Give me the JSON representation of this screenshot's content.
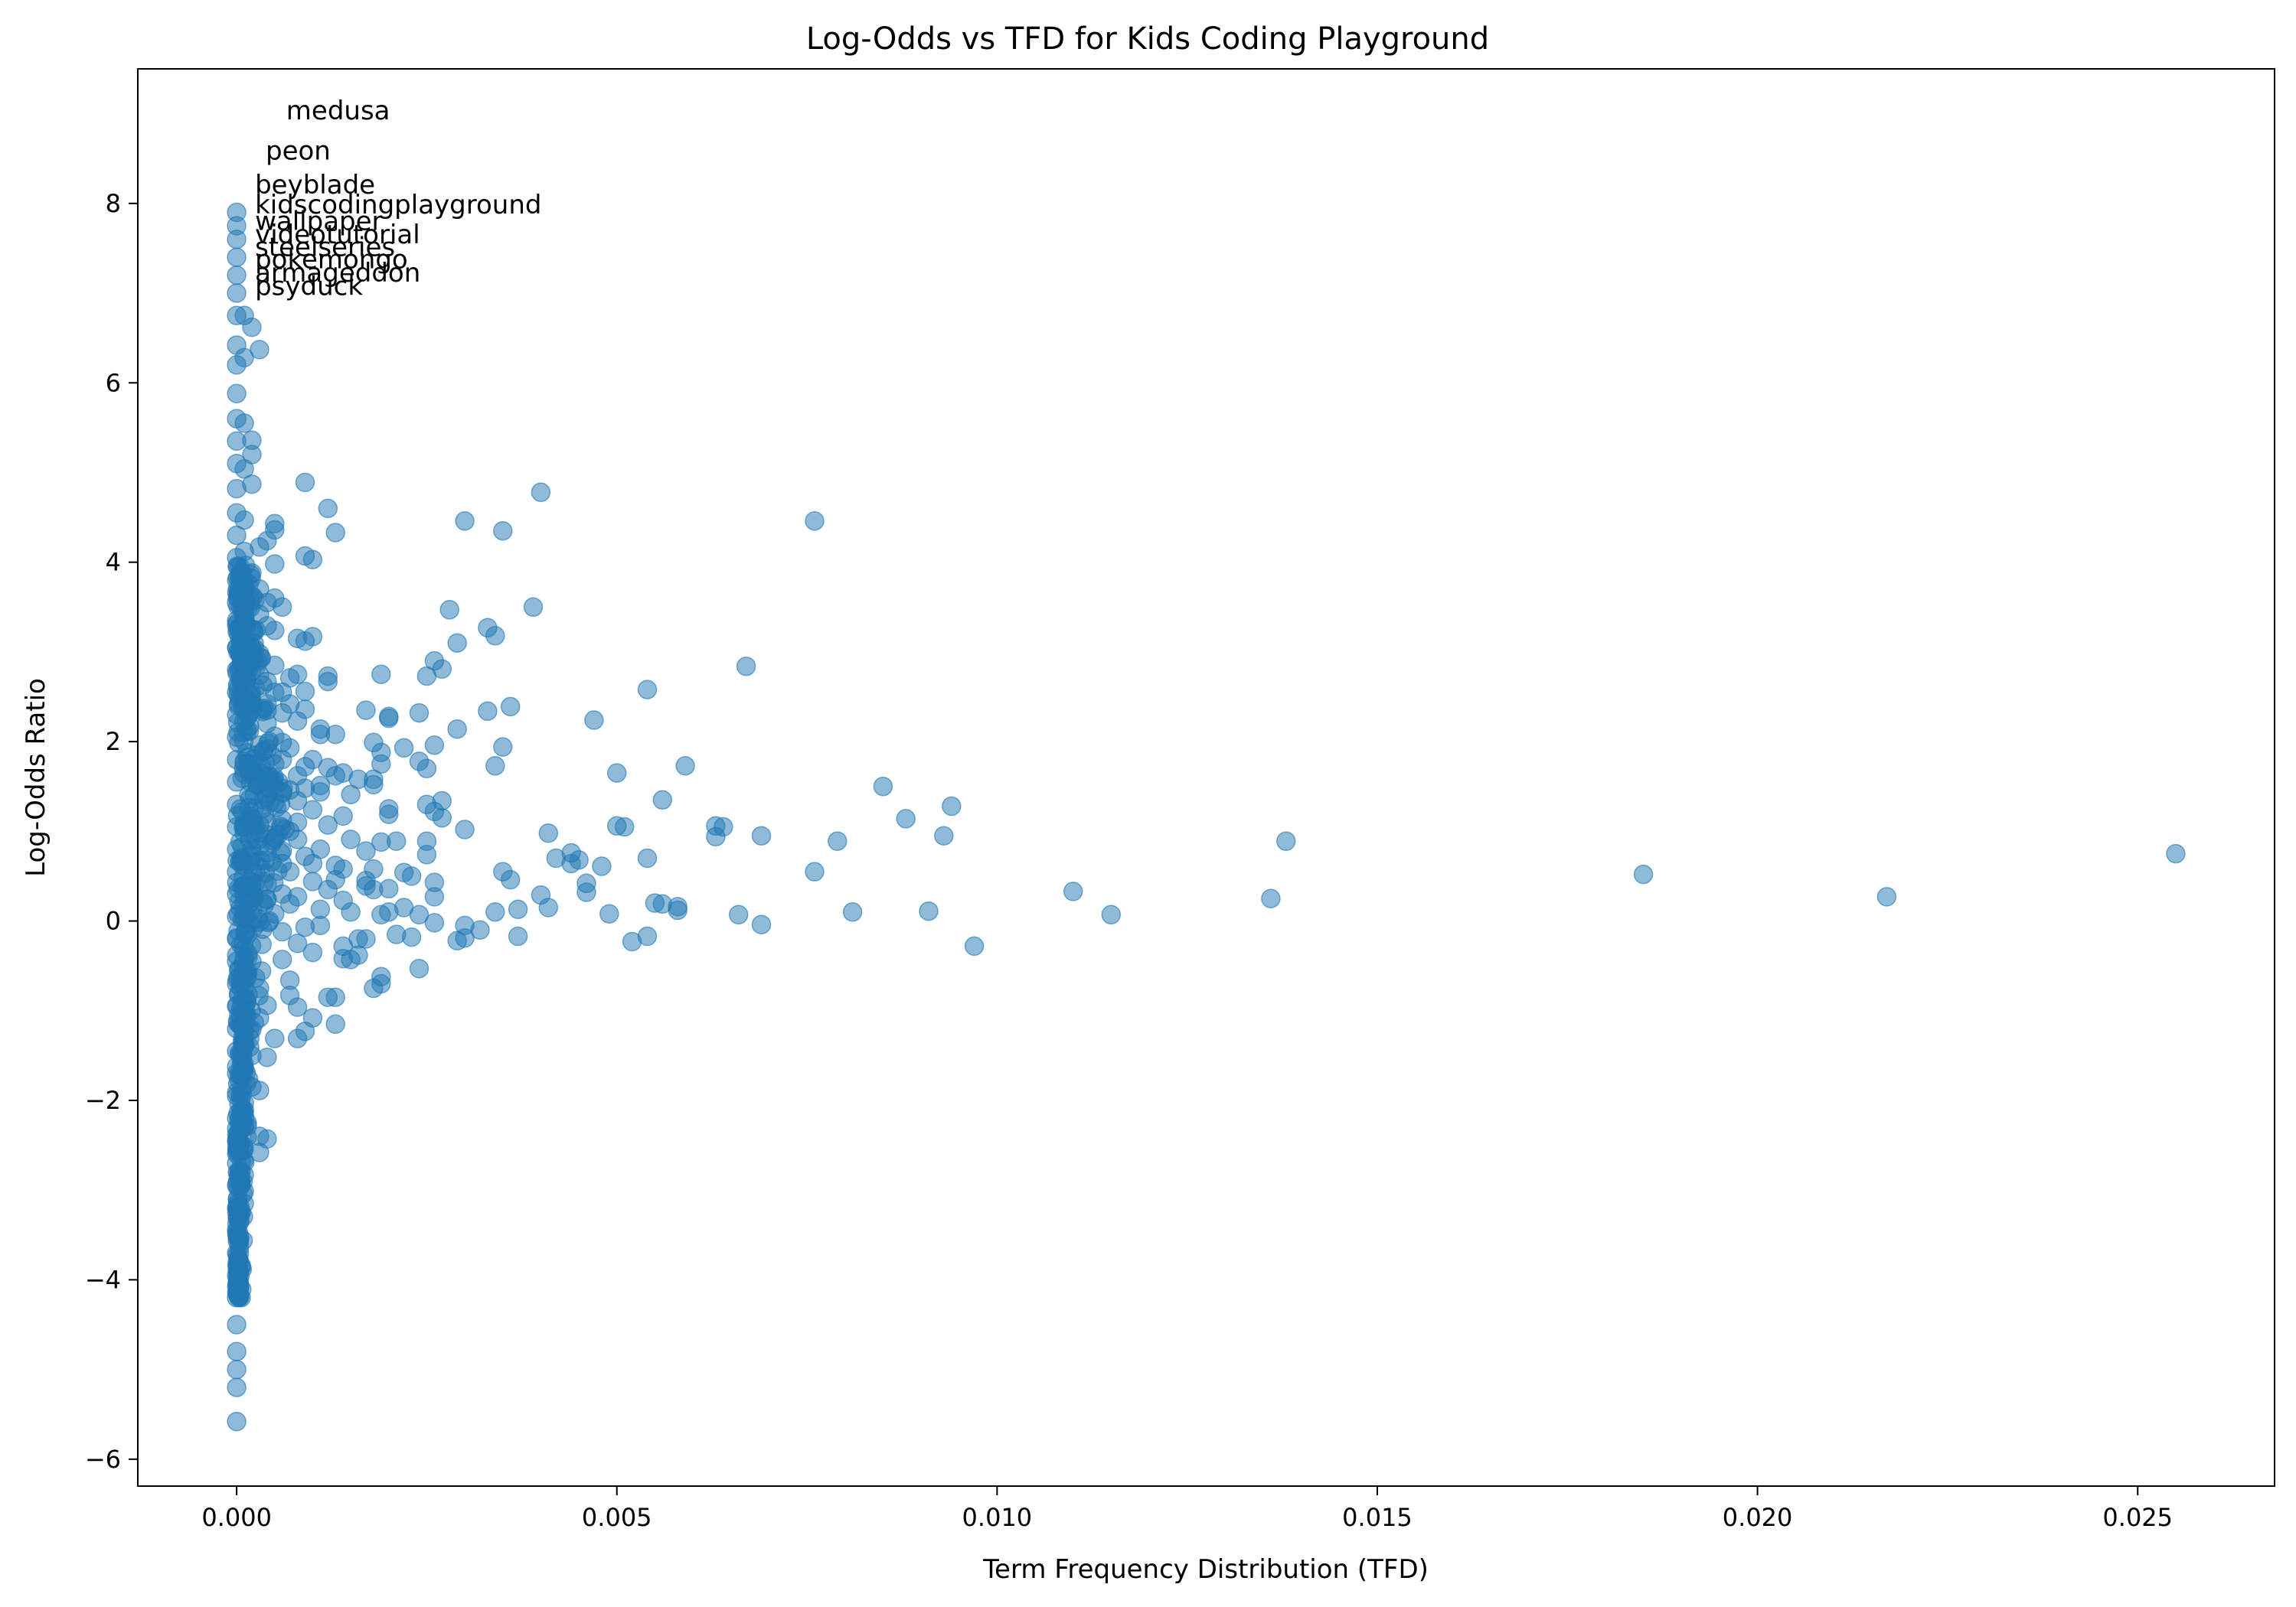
{
  "chart_data": {
    "type": "scatter",
    "title": "Log-Odds vs TFD for Kids Coding Playground",
    "xlabel": "Term Frequency Distribution (TFD)",
    "ylabel": "Log-Odds Ratio",
    "xlim": [
      -0.0013,
      0.0268
    ],
    "ylim": [
      -6.3,
      9.5
    ],
    "x_ticks": [
      0.0,
      0.005,
      0.01,
      0.015,
      0.02,
      0.025
    ],
    "x_tick_labels": [
      "0.000",
      "0.005",
      "0.010",
      "0.015",
      "0.020",
      "0.025"
    ],
    "y_ticks": [
      -6,
      -4,
      -2,
      0,
      2,
      4,
      6,
      8
    ],
    "y_tick_labels": [
      "−6",
      "−4",
      "−2",
      "0",
      "2",
      "4",
      "6",
      "8"
    ],
    "grid": false,
    "marker_color": "#1f77b4",
    "marker_alpha": 0.5,
    "annotations": [
      {
        "text": "medusa",
        "x": 0.00043,
        "y": 8.75
      },
      {
        "text": "peon",
        "x": 0.00016,
        "y": 8.3
      },
      {
        "text": "beyblade",
        "x": 2e-05,
        "y": 7.92
      },
      {
        "text": "kidscodingplayground",
        "x": 2e-05,
        "y": 7.7
      },
      {
        "text": "wallpaper",
        "x": 2e-05,
        "y": 7.6
      },
      {
        "text": "videotutorial",
        "x": 2e-05,
        "y": 7.52
      },
      {
        "text": "steelseries",
        "x": 2e-05,
        "y": 7.45
      },
      {
        "text": "pokemongo",
        "x": 2e-05,
        "y": 7.38
      },
      {
        "text": "armageddon",
        "x": 2e-05,
        "y": 7.3
      },
      {
        "text": "psyduck",
        "x": 2e-05,
        "y": 7.22
      }
    ],
    "points": [
      [
        0.0255,
        0.75
      ],
      [
        0.0217,
        0.27
      ],
      [
        0.0185,
        0.52
      ],
      [
        0.0138,
        0.89
      ],
      [
        0.0136,
        0.25
      ],
      [
        0.0115,
        0.07
      ],
      [
        0.011,
        0.33
      ],
      [
        0.0097,
        -0.28
      ],
      [
        0.0094,
        1.28
      ],
      [
        0.0093,
        0.95
      ],
      [
        0.0091,
        0.11
      ],
      [
        0.0088,
        1.14
      ],
      [
        0.0085,
        1.5
      ],
      [
        0.0081,
        0.1
      ],
      [
        0.0079,
        0.89
      ],
      [
        0.0076,
        4.46
      ],
      [
        0.0076,
        0.55
      ],
      [
        0.0069,
        0.95
      ],
      [
        0.0069,
        -0.04
      ],
      [
        0.0067,
        2.84
      ],
      [
        0.0066,
        0.07
      ],
      [
        0.0064,
        1.05
      ],
      [
        0.0063,
        0.94
      ],
      [
        0.0063,
        1.06
      ],
      [
        0.0059,
        1.73
      ],
      [
        0.0058,
        0.12
      ],
      [
        0.0058,
        0.16
      ],
      [
        0.0056,
        1.35
      ],
      [
        0.0056,
        0.19
      ],
      [
        0.0055,
        0.2
      ],
      [
        0.0054,
        2.58
      ],
      [
        0.0054,
        -0.17
      ],
      [
        0.0054,
        0.7
      ],
      [
        0.0052,
        -0.23
      ],
      [
        0.0051,
        1.05
      ],
      [
        0.005,
        1.65
      ],
      [
        0.005,
        1.06
      ],
      [
        0.0049,
        0.08
      ],
      [
        0.0048,
        0.61
      ],
      [
        0.0047,
        2.24
      ],
      [
        0.0046,
        0.32
      ],
      [
        0.0046,
        0.42
      ],
      [
        0.0045,
        0.68
      ],
      [
        0.0044,
        0.64
      ],
      [
        0.0044,
        0.76
      ],
      [
        0.0042,
        0.7
      ],
      [
        0.0041,
        0.98
      ],
      [
        0.0041,
        0.15
      ],
      [
        0.004,
        0.29
      ],
      [
        0.004,
        4.78
      ],
      [
        0.0039,
        3.5
      ],
      [
        0.0037,
        0.13
      ],
      [
        0.0037,
        -0.17
      ],
      [
        0.0036,
        0.46
      ],
      [
        0.0036,
        2.39
      ],
      [
        0.0035,
        0.55
      ],
      [
        0.0035,
        1.94
      ],
      [
        0.0035,
        4.35
      ],
      [
        0.0034,
        1.73
      ],
      [
        0.0034,
        3.18
      ],
      [
        0.0034,
        0.1
      ],
      [
        0.0033,
        3.27
      ],
      [
        0.0033,
        2.34
      ],
      [
        0.0032,
        -0.1
      ],
      [
        0.003,
        -0.05
      ],
      [
        0.003,
        1.02
      ],
      [
        0.003,
        -0.19
      ],
      [
        0.003,
        4.46
      ],
      [
        0.0029,
        -0.22
      ],
      [
        0.0029,
        2.14
      ],
      [
        0.0029,
        3.1
      ],
      [
        0.0028,
        3.47
      ],
      [
        0.0027,
        1.34
      ],
      [
        0.0027,
        1.15
      ],
      [
        0.0027,
        2.81
      ],
      [
        0.0026,
        2.9
      ],
      [
        0.0026,
        1.96
      ],
      [
        0.0026,
        0.27
      ],
      [
        0.0026,
        -0.02
      ],
      [
        0.0026,
        0.43
      ],
      [
        0.0026,
        1.22
      ],
      [
        0.0025,
        2.73
      ],
      [
        0.0025,
        1.3
      ],
      [
        0.0025,
        0.74
      ],
      [
        0.0025,
        0.89
      ],
      [
        0.0025,
        1.7
      ],
      [
        0.0024,
        0.07
      ],
      [
        0.0024,
        -0.53
      ],
      [
        0.0024,
        1.78
      ],
      [
        0.0024,
        2.32
      ],
      [
        0.0023,
        0.5
      ],
      [
        0.0023,
        -0.18
      ],
      [
        0.0022,
        0.54
      ],
      [
        0.0022,
        1.93
      ],
      [
        0.0022,
        0.15
      ],
      [
        0.0021,
        0.89
      ],
      [
        0.0021,
        -0.15
      ],
      [
        0.002,
        1.25
      ],
      [
        0.002,
        0.36
      ],
      [
        0.002,
        0.1
      ],
      [
        0.002,
        2.28
      ],
      [
        0.002,
        2.26
      ],
      [
        0.002,
        1.19
      ],
      [
        0.0019,
        1.88
      ],
      [
        0.0019,
        -0.62
      ],
      [
        0.0019,
        -0.7
      ],
      [
        0.0019,
        0.88
      ],
      [
        0.0019,
        1.75
      ],
      [
        0.0019,
        0.07
      ],
      [
        0.0019,
        2.75
      ],
      [
        0.0018,
        0.35
      ],
      [
        0.0018,
        -0.75
      ],
      [
        0.0018,
        1.58
      ],
      [
        0.0018,
        1.99
      ],
      [
        0.0018,
        1.52
      ],
      [
        0.0018,
        0.58
      ],
      [
        0.0017,
        0.45
      ],
      [
        0.0017,
        -0.2
      ],
      [
        0.0017,
        0.78
      ],
      [
        0.0017,
        2.35
      ],
      [
        0.0017,
        0.39
      ],
      [
        0.0016,
        -0.38
      ],
      [
        0.0016,
        1.58
      ],
      [
        0.0016,
        -0.2
      ],
      [
        0.0015,
        -0.43
      ],
      [
        0.0015,
        0.91
      ],
      [
        0.0015,
        0.1
      ],
      [
        0.0015,
        1.41
      ],
      [
        0.0014,
        1.65
      ],
      [
        0.0014,
        0.58
      ],
      [
        0.0014,
        1.17
      ],
      [
        0.0014,
        -0.42
      ],
      [
        0.0014,
        0.23
      ],
      [
        0.0014,
        -0.28
      ],
      [
        0.0013,
        4.33
      ],
      [
        0.0013,
        -0.85
      ],
      [
        0.0013,
        -1.15
      ],
      [
        0.0013,
        0.62
      ],
      [
        0.0013,
        0.46
      ],
      [
        0.0013,
        2.08
      ],
      [
        0.0013,
        1.62
      ],
      [
        0.0012,
        2.73
      ],
      [
        0.0012,
        4.6
      ],
      [
        0.0012,
        1.07
      ],
      [
        0.0012,
        0.35
      ],
      [
        0.0012,
        -0.85
      ],
      [
        0.0012,
        1.71
      ],
      [
        0.0012,
        2.67
      ],
      [
        0.0011,
        0.13
      ],
      [
        0.0011,
        1.44
      ],
      [
        0.0011,
        1.51
      ],
      [
        0.0011,
        0.8
      ],
      [
        0.0011,
        -0.05
      ],
      [
        0.0011,
        2.08
      ],
      [
        0.0011,
        2.14
      ],
      [
        0.001,
        1.24
      ],
      [
        0.001,
        0.64
      ],
      [
        0.001,
        4.03
      ],
      [
        0.001,
        -1.08
      ],
      [
        0.001,
        -0.35
      ],
      [
        0.001,
        1.8
      ],
      [
        0.001,
        3.17
      ],
      [
        0.001,
        0.44
      ],
      [
        0.0009,
        4.89
      ],
      [
        0.0009,
        4.07
      ],
      [
        0.0009,
        1.48
      ],
      [
        0.0009,
        0.72
      ],
      [
        0.0009,
        -0.07
      ],
      [
        0.0009,
        2.56
      ],
      [
        0.0009,
        3.12
      ],
      [
        0.0009,
        2.36
      ],
      [
        0.0009,
        -1.23
      ],
      [
        0.0009,
        1.72
      ],
      [
        0.0008,
        2.75
      ],
      [
        0.0008,
        3.15
      ],
      [
        0.0008,
        0.27
      ],
      [
        0.0008,
        1.1
      ],
      [
        0.0008,
        -0.96
      ],
      [
        0.0008,
        -1.31
      ],
      [
        0.0008,
        0.91
      ],
      [
        0.0008,
        2.23
      ],
      [
        0.0008,
        1.62
      ],
      [
        0.0008,
        -0.25
      ],
      [
        0.0008,
        1.34
      ],
      [
        0.0007,
        2.42
      ],
      [
        0.0007,
        0.55
      ],
      [
        0.0007,
        -0.66
      ],
      [
        0.0007,
        1.93
      ],
      [
        0.0007,
        2.71
      ],
      [
        0.0007,
        0.19
      ],
      [
        0.0007,
        1.0
      ],
      [
        0.0007,
        -0.83
      ],
      [
        0.0007,
        1.46
      ],
      [
        0.0006,
        3.5
      ],
      [
        0.0006,
        2.32
      ],
      [
        0.0006,
        0.78
      ],
      [
        0.0006,
        -0.43
      ],
      [
        0.0006,
        1.8
      ],
      [
        0.0006,
        2.55
      ],
      [
        0.0006,
        0.3
      ],
      [
        0.0006,
        1.13
      ],
      [
        0.0006,
        -0.12
      ],
      [
        0.0006,
        1.99
      ],
      [
        0.0006,
        0.64
      ],
      [
        0.0005,
        4.43
      ],
      [
        0.0005,
        4.36
      ],
      [
        0.0005,
        3.98
      ],
      [
        0.0005,
        3.6
      ],
      [
        0.0005,
        3.24
      ],
      [
        0.0005,
        2.85
      ],
      [
        0.0005,
        2.55
      ],
      [
        0.0005,
        1.32
      ],
      [
        0.0005,
        -1.31
      ],
      [
        0.0005,
        0.08
      ],
      [
        0.0005,
        1.75
      ],
      [
        0.0005,
        2.06
      ],
      [
        0.0005,
        0.93
      ],
      [
        0.0004,
        4.24
      ],
      [
        0.0004,
        3.55
      ],
      [
        0.0004,
        3.29
      ],
      [
        0.0004,
        2.42
      ],
      [
        0.0004,
        2.67
      ],
      [
        0.0004,
        1.92
      ],
      [
        0.0004,
        -0.94
      ],
      [
        0.0004,
        0.76
      ],
      [
        0.0004,
        1.41
      ],
      [
        0.0004,
        -1.52
      ],
      [
        0.0004,
        0.41
      ],
      [
        0.0004,
        -2.43
      ],
      [
        0.0004,
        0.24
      ],
      [
        0.0004,
        2.35
      ],
      [
        0.0003,
        6.37
      ],
      [
        0.0003,
        4.17
      ],
      [
        0.0003,
        3.7
      ],
      [
        0.0003,
        3.42
      ],
      [
        0.0003,
        2.98
      ],
      [
        0.0003,
        1.55
      ],
      [
        0.0003,
        -2.4
      ],
      [
        0.0003,
        -2.58
      ],
      [
        0.0003,
        -1.89
      ],
      [
        0.0003,
        2.74
      ],
      [
        0.0003,
        -0.75
      ],
      [
        0.0003,
        1.96
      ],
      [
        0.0003,
        -1.08
      ],
      [
        0.0003,
        0.6
      ],
      [
        0.0002,
        6.62
      ],
      [
        0.0002,
        5.36
      ],
      [
        0.0002,
        5.2
      ],
      [
        0.0002,
        4.87
      ],
      [
        0.0002,
        3.88
      ],
      [
        0.0002,
        3.04
      ],
      [
        0.0002,
        2.35
      ],
      [
        0.0002,
        1.67
      ],
      [
        0.0002,
        1.1
      ],
      [
        0.0002,
        -1.85
      ],
      [
        0.0002,
        -1.5
      ],
      [
        0.0002,
        -0.45
      ],
      [
        0.0002,
        0.4
      ],
      [
        0.0002,
        3.25
      ],
      [
        0.0002,
        -1.21
      ],
      [
        0.0001,
        6.28
      ],
      [
        0.0001,
        5.55
      ],
      [
        0.0001,
        5.04
      ],
      [
        0.0001,
        4.47
      ],
      [
        0.0001,
        3.8
      ],
      [
        0.0001,
        3.45
      ],
      [
        0.0001,
        2.95
      ],
      [
        0.0001,
        2.45
      ],
      [
        0.0001,
        1.78
      ],
      [
        0.0001,
        1.05
      ],
      [
        0.0001,
        0.4
      ],
      [
        0.0001,
        -0.4
      ],
      [
        0.0001,
        -1.0
      ],
      [
        0.0001,
        -1.65
      ],
      [
        0.0001,
        -2.3
      ],
      [
        0.0001,
        -2.83
      ],
      [
        0.0001,
        -3.15
      ],
      [
        0.0001,
        6.75
      ],
      [
        0.0001,
        4.12
      ],
      [
        0.0001,
        0.1
      ],
      [
        0.0,
        7.9
      ],
      [
        0.0,
        7.75
      ],
      [
        0.0,
        7.6
      ],
      [
        0.0,
        7.4
      ],
      [
        0.0,
        7.2
      ],
      [
        0.0,
        7.0
      ],
      [
        0.0,
        6.75
      ],
      [
        0.0,
        6.42
      ],
      [
        0.0,
        6.2
      ],
      [
        0.0,
        5.88
      ],
      [
        0.0,
        5.6
      ],
      [
        0.0,
        5.35
      ],
      [
        0.0,
        5.1
      ],
      [
        0.0,
        4.82
      ],
      [
        0.0,
        4.55
      ],
      [
        0.0,
        4.3
      ],
      [
        0.0,
        4.05
      ],
      [
        0.0,
        3.8
      ],
      [
        0.0,
        3.55
      ],
      [
        0.0,
        3.3
      ],
      [
        0.0,
        3.05
      ],
      [
        0.0,
        2.8
      ],
      [
        0.0,
        2.55
      ],
      [
        0.0,
        2.3
      ],
      [
        0.0,
        2.05
      ],
      [
        0.0,
        1.8
      ],
      [
        0.0,
        1.55
      ],
      [
        0.0,
        1.3
      ],
      [
        0.0,
        1.05
      ],
      [
        0.0,
        0.8
      ],
      [
        0.0,
        0.55
      ],
      [
        0.0,
        0.3
      ],
      [
        0.0,
        0.05
      ],
      [
        0.0,
        -0.2
      ],
      [
        0.0,
        -0.45
      ],
      [
        0.0,
        -0.7
      ],
      [
        0.0,
        -0.95
      ],
      [
        0.0,
        -1.2
      ],
      [
        0.0,
        -1.45
      ],
      [
        0.0,
        -1.7
      ],
      [
        0.0,
        -1.95
      ],
      [
        0.0,
        -2.2
      ],
      [
        0.0,
        -2.45
      ],
      [
        0.0,
        -2.7
      ],
      [
        0.0,
        -2.95
      ],
      [
        0.0,
        -3.2
      ],
      [
        0.0,
        -3.45
      ],
      [
        0.0,
        -3.7
      ],
      [
        0.0,
        -3.95
      ],
      [
        0.0,
        -4.2
      ],
      [
        0.0,
        -4.5
      ],
      [
        0.0,
        -4.8
      ],
      [
        0.0,
        -5.0
      ],
      [
        0.0,
        -5.2
      ],
      [
        0.0,
        -5.58
      ]
    ],
    "band_fill": true
  }
}
